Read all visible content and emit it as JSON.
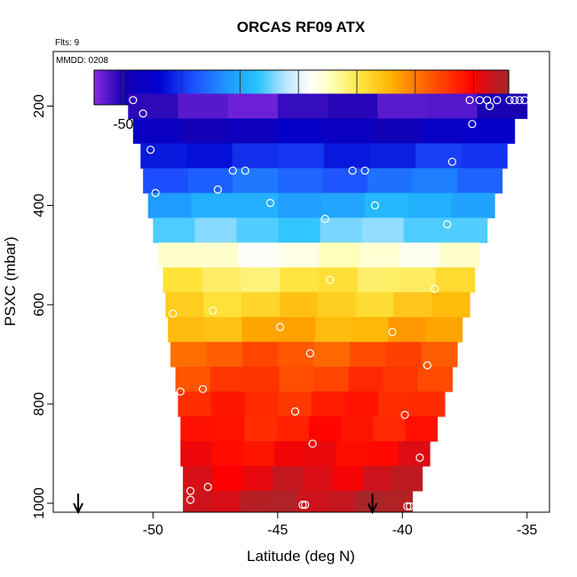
{
  "chart_data": {
    "type": "heatmap",
    "title": "ORCAS RF09 ATX",
    "annotations": [
      "Flts: 9",
      "MMDD: 0208"
    ],
    "xlabel": "Latitude (deg N)",
    "ylabel": "PSXC (mbar)",
    "xlim": [
      -54,
      -34.1
    ],
    "ylim": [
      1018,
      90
    ],
    "x_ticks": [
      -50,
      -45,
      -40,
      -35
    ],
    "y_ticks": [
      200,
      400,
      600,
      800,
      1000
    ],
    "colorbar": {
      "range": [
        -55,
        16
      ],
      "ticks": [
        -50,
        -40,
        -30,
        -20,
        -10,
        0,
        10
      ],
      "stops": [
        {
          "v": -55,
          "c": "#8a2be2"
        },
        {
          "v": -50,
          "c": "#1500b0"
        },
        {
          "v": -44,
          "c": "#0000d0"
        },
        {
          "v": -38,
          "c": "#1e50ff"
        },
        {
          "v": -32,
          "c": "#1e9bff"
        },
        {
          "v": -27,
          "c": "#28c3ff"
        },
        {
          "v": -22,
          "c": "#bfe6ff"
        },
        {
          "v": -18,
          "c": "#ffffff"
        },
        {
          "v": -14,
          "c": "#ffffb0"
        },
        {
          "v": -9,
          "c": "#ffe23a"
        },
        {
          "v": -4,
          "c": "#ffb000"
        },
        {
          "v": 0,
          "c": "#ff7a00"
        },
        {
          "v": 5,
          "c": "#ff3c00"
        },
        {
          "v": 10,
          "c": "#ff0000"
        },
        {
          "v": 13,
          "c": "#c8141e"
        },
        {
          "v": 16,
          "c": "#a52828"
        }
      ]
    },
    "bands": [
      {
        "p_top": 175,
        "p_bot": 225,
        "lat_min": -51.0,
        "lat_max": -35.0,
        "temp": -52
      },
      {
        "p_top": 225,
        "p_bot": 275,
        "lat_min": -50.8,
        "lat_max": -35.5,
        "temp": -47
      },
      {
        "p_top": 275,
        "p_bot": 325,
        "lat_min": -50.5,
        "lat_max": -35.8,
        "temp": -41
      },
      {
        "p_top": 325,
        "p_bot": 375,
        "lat_min": -50.4,
        "lat_max": -36.0,
        "temp": -36
      },
      {
        "p_top": 375,
        "p_bot": 425,
        "lat_min": -50.2,
        "lat_max": -36.3,
        "temp": -30
      },
      {
        "p_top": 425,
        "p_bot": 475,
        "lat_min": -50.0,
        "lat_max": -36.6,
        "temp": -25
      },
      {
        "p_top": 475,
        "p_bot": 525,
        "lat_min": -49.8,
        "lat_max": -36.9,
        "temp": -16
      },
      {
        "p_top": 525,
        "p_bot": 575,
        "lat_min": -49.6,
        "lat_max": -37.1,
        "temp": -10
      },
      {
        "p_top": 575,
        "p_bot": 625,
        "lat_min": -49.5,
        "lat_max": -37.3,
        "temp": -7
      },
      {
        "p_top": 625,
        "p_bot": 675,
        "lat_min": -49.4,
        "lat_max": -37.6,
        "temp": -4
      },
      {
        "p_top": 675,
        "p_bot": 725,
        "lat_min": -49.3,
        "lat_max": -37.8,
        "temp": 3
      },
      {
        "p_top": 725,
        "p_bot": 775,
        "lat_min": -49.1,
        "lat_max": -38.0,
        "temp": 5
      },
      {
        "p_top": 775,
        "p_bot": 825,
        "lat_min": -49.0,
        "lat_max": -38.3,
        "temp": 7
      },
      {
        "p_top": 825,
        "p_bot": 875,
        "lat_min": -48.9,
        "lat_max": -38.6,
        "temp": 8
      },
      {
        "p_top": 875,
        "p_bot": 925,
        "lat_min": -48.9,
        "lat_max": -38.9,
        "temp": 10
      },
      {
        "p_top": 925,
        "p_bot": 975,
        "lat_min": -48.8,
        "lat_max": -39.2,
        "temp": 12
      },
      {
        "p_top": 975,
        "p_bot": 1018,
        "lat_min": -48.8,
        "lat_max": -39.6,
        "temp": 14
      }
    ],
    "points": [
      [
        -50.8,
        188
      ],
      [
        -50.4,
        215
      ],
      [
        -50.1,
        288
      ],
      [
        -49.9,
        375
      ],
      [
        -47.4,
        368
      ],
      [
        -46.8,
        330
      ],
      [
        -46.3,
        330
      ],
      [
        -45.3,
        395
      ],
      [
        -44.9,
        508
      ],
      [
        -43.1,
        427
      ],
      [
        -42.9,
        550
      ],
      [
        -42.0,
        330
      ],
      [
        -41.5,
        330
      ],
      [
        -41.1,
        400
      ],
      [
        -40.7,
        515
      ],
      [
        -40.4,
        655
      ],
      [
        -47.6,
        612
      ],
      [
        -48.9,
        775
      ],
      [
        -49.2,
        618
      ],
      [
        -48.0,
        770
      ],
      [
        -44.9,
        645
      ],
      [
        -43.7,
        698
      ],
      [
        -44.3,
        815
      ],
      [
        -43.6,
        880
      ],
      [
        -39.9,
        822
      ],
      [
        -39.0,
        722
      ],
      [
        -38.7,
        568
      ],
      [
        -38.0,
        312
      ],
      [
        -38.2,
        438
      ],
      [
        -37.3,
        188
      ],
      [
        -37.2,
        236
      ],
      [
        -36.9,
        188
      ],
      [
        -36.6,
        188
      ],
      [
        -36.5,
        200
      ],
      [
        -36.2,
        188
      ],
      [
        -35.7,
        188
      ],
      [
        -35.3,
        188
      ],
      [
        -35.1,
        188
      ],
      [
        -35.5,
        188
      ],
      [
        -39.3,
        908
      ],
      [
        -47.8,
        967
      ],
      [
        -48.5,
        975
      ],
      [
        -48.5,
        993
      ],
      [
        -44.0,
        1003
      ],
      [
        -43.9,
        1003
      ],
      [
        -39.8,
        1006
      ],
      [
        -39.7,
        1006
      ]
    ],
    "arrows": [
      -53.0,
      -41.2
    ]
  }
}
